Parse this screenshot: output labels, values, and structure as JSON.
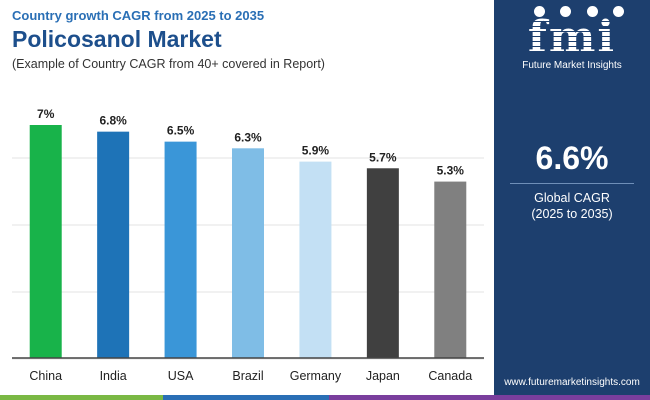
{
  "header": {
    "kicker": "Country growth CAGR from 2025 to 2035",
    "title": "Policosanol Market",
    "subtitle": "(Example of Country CAGR from 40+ covered in Report)"
  },
  "chart_data": {
    "type": "bar",
    "title": "Policosanol Market",
    "categories": [
      "China",
      "India",
      "USA",
      "Brazil",
      "Germany",
      "Japan",
      "Canada"
    ],
    "values": [
      7.0,
      6.8,
      6.5,
      6.3,
      5.9,
      5.7,
      5.3
    ],
    "value_labels": [
      "7%",
      "6.8%",
      "6.5%",
      "6.3%",
      "5.9%",
      "5.7%",
      "5.3%"
    ],
    "bar_colors": [
      "#18b34a",
      "#1e73b7",
      "#3a96d8",
      "#7fbde6",
      "#c3e0f4",
      "#404040",
      "#808080"
    ],
    "ylim": [
      0,
      7.0
    ],
    "grid": true,
    "xlabel": "",
    "ylabel": ""
  },
  "side_panel": {
    "logo_text": "fmi",
    "logo_tagline": "Future Market Insights",
    "global_cagr_value": "6.6%",
    "global_cagr_label": "Global CAGR",
    "global_cagr_period": "(2025 to 2035)",
    "website": "www.futuremarketinsights.com"
  },
  "colors": {
    "panel_bg": "#1d3f6e",
    "title": "#1d4f8c",
    "kicker": "#2a6fb5",
    "strip": [
      "#7ab844",
      "#2a6fb5",
      "#7a3e9d"
    ]
  }
}
